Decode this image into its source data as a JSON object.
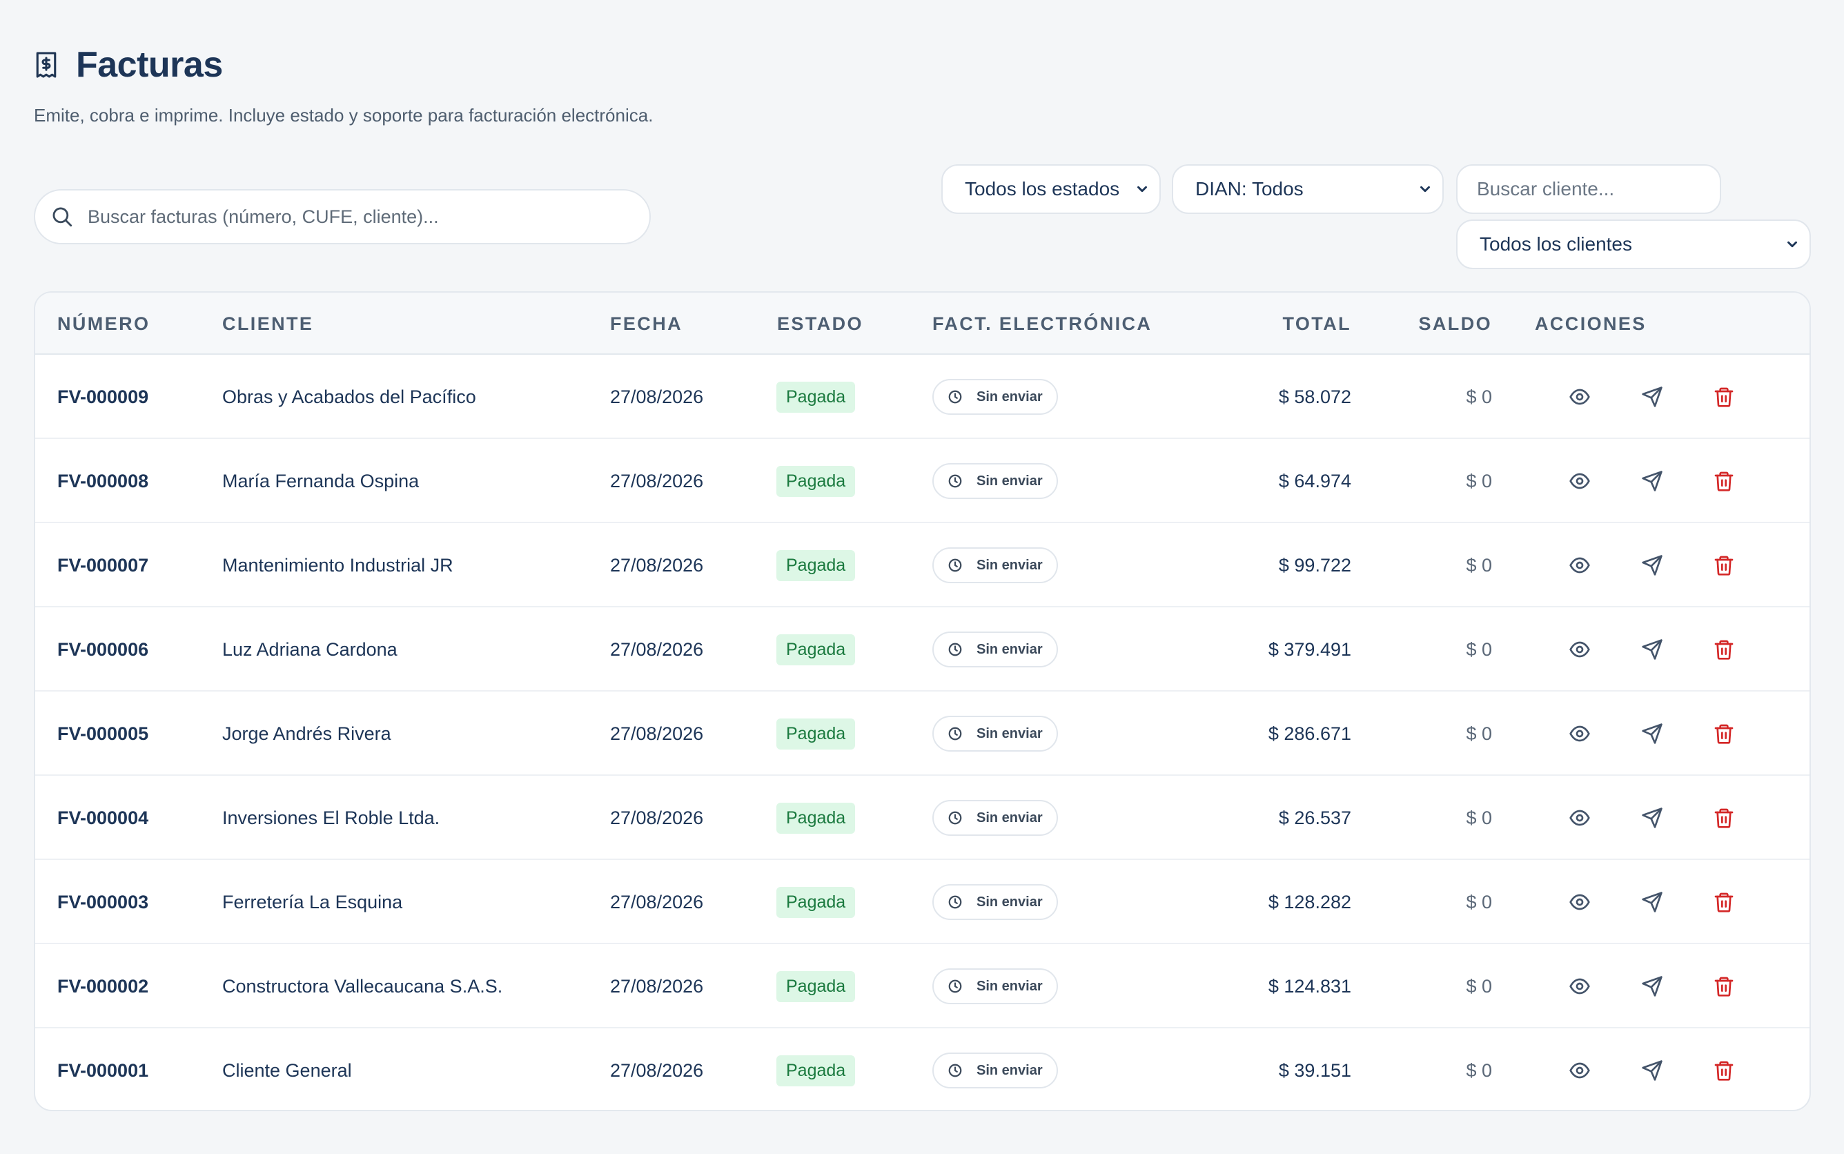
{
  "header": {
    "title": "Facturas",
    "subtitle": "Emite, cobra e imprime. Incluye estado y soporte para facturación electrónica.",
    "icon": "receipt-dollar-icon"
  },
  "search": {
    "placeholder": "Buscar facturas (número, CUFE, cliente)...",
    "value": ""
  },
  "filters": {
    "estado": "Todos los estados",
    "dian": "DIAN: Todos",
    "client_search_placeholder": "Buscar cliente...",
    "clientes": "Todos los clientes"
  },
  "table": {
    "columns": {
      "numero": "NÚMERO",
      "cliente": "CLIENTE",
      "fecha": "FECHA",
      "estado": "ESTADO",
      "fe": "FACT. ELECTRÓNICA",
      "total": "TOTAL",
      "saldo": "SALDO",
      "acciones": "ACCIONES"
    },
    "rows": [
      {
        "numero": "FV-000009",
        "cliente": "Obras y Acabados del Pacífico",
        "fecha": "27/08/2026",
        "estado": "Pagada",
        "fe": "Sin enviar",
        "total": "$ 58.072",
        "saldo": "$ 0"
      },
      {
        "numero": "FV-000008",
        "cliente": "María Fernanda Ospina",
        "fecha": "27/08/2026",
        "estado": "Pagada",
        "fe": "Sin enviar",
        "total": "$ 64.974",
        "saldo": "$ 0"
      },
      {
        "numero": "FV-000007",
        "cliente": "Mantenimiento Industrial JR",
        "fecha": "27/08/2026",
        "estado": "Pagada",
        "fe": "Sin enviar",
        "total": "$ 99.722",
        "saldo": "$ 0"
      },
      {
        "numero": "FV-000006",
        "cliente": "Luz Adriana Cardona",
        "fecha": "27/08/2026",
        "estado": "Pagada",
        "fe": "Sin enviar",
        "total": "$ 379.491",
        "saldo": "$ 0"
      },
      {
        "numero": "FV-000005",
        "cliente": "Jorge Andrés Rivera",
        "fecha": "27/08/2026",
        "estado": "Pagada",
        "fe": "Sin enviar",
        "total": "$ 286.671",
        "saldo": "$ 0"
      },
      {
        "numero": "FV-000004",
        "cliente": "Inversiones El Roble Ltda.",
        "fecha": "27/08/2026",
        "estado": "Pagada",
        "fe": "Sin enviar",
        "total": "$ 26.537",
        "saldo": "$ 0"
      },
      {
        "numero": "FV-000003",
        "cliente": "Ferretería La Esquina",
        "fecha": "27/08/2026",
        "estado": "Pagada",
        "fe": "Sin enviar",
        "total": "$ 128.282",
        "saldo": "$ 0"
      },
      {
        "numero": "FV-000002",
        "cliente": "Constructora Vallecaucana S.A.S.",
        "fecha": "27/08/2026",
        "estado": "Pagada",
        "fe": "Sin enviar",
        "total": "$ 124.831",
        "saldo": "$ 0"
      },
      {
        "numero": "FV-000001",
        "cliente": "Cliente General",
        "fecha": "27/08/2026",
        "estado": "Pagada",
        "fe": "Sin enviar",
        "total": "$ 39.151",
        "saldo": "$ 0"
      }
    ]
  },
  "colors": {
    "background": "#f4f6f8",
    "title": "#1d3557",
    "paid_badge_bg": "#ddf7e6",
    "paid_badge_text": "#1b7a3f",
    "delete": "#d42727"
  },
  "icons": {
    "search": "search-icon",
    "chevron": "chevron-down-icon",
    "clock": "clock-icon",
    "view": "eye-icon",
    "send": "send-icon",
    "delete": "trash-icon"
  }
}
